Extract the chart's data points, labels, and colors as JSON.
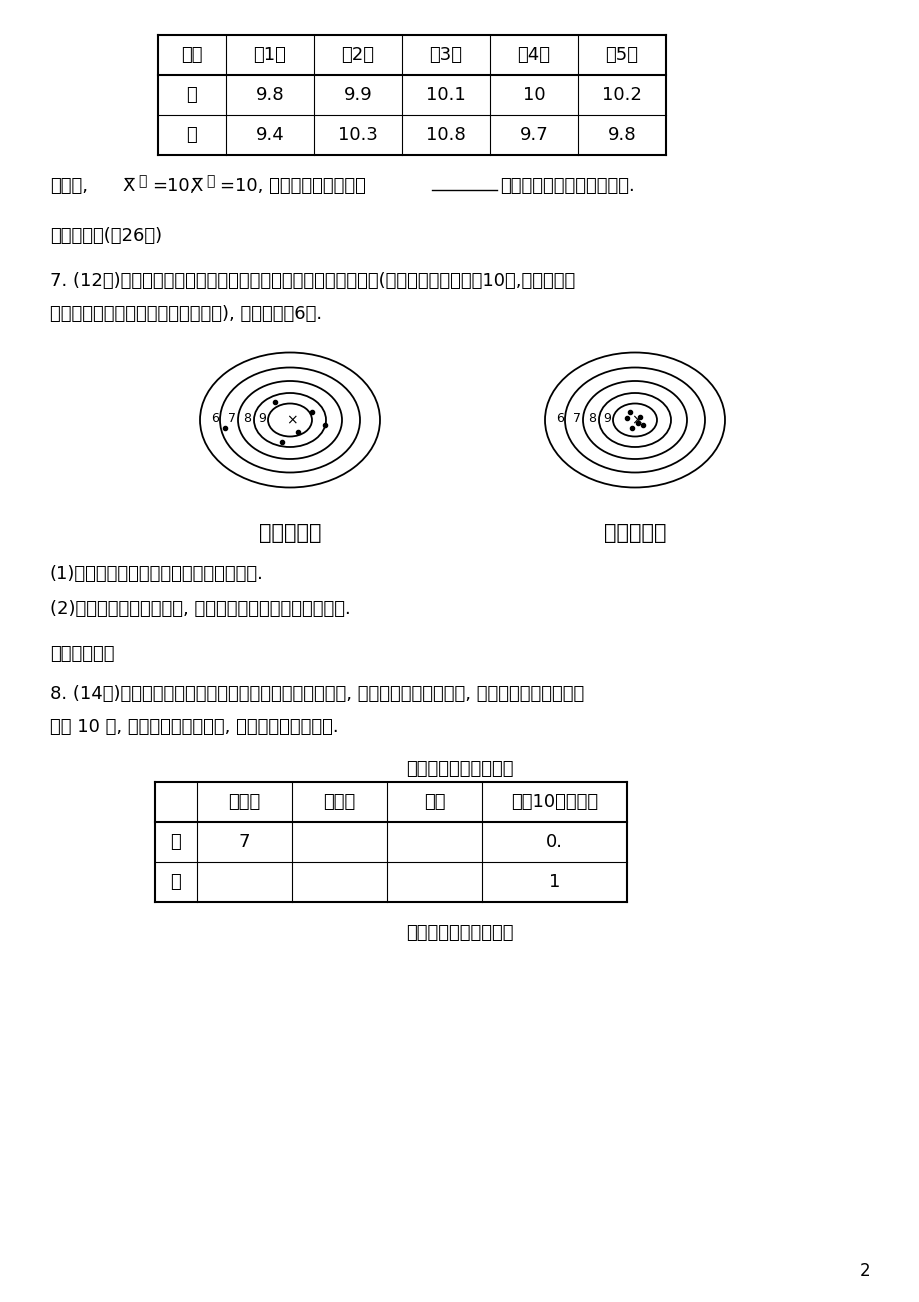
{
  "bg_color": "#ffffff",
  "page_num": "2",
  "table1": {
    "headers": [
      "品种",
      "第1年",
      "第2年",
      "第3年",
      "第4年",
      "第5年"
    ],
    "rows": [
      [
        "甲",
        "9.8",
        "9.9",
        "10.1",
        "10",
        "10.2"
      ],
      [
        "乙",
        "9.4",
        "10.3",
        "10.8",
        "9.7",
        "9.8"
      ]
    ]
  },
  "section3_title": "三、解答题(內26分)",
  "q7_text1": "7. (12分)如图所示是甲、乙两人在一次射击比赛中击中靶的情况(击中靶中心的圆面为10环,靶中各数字",
  "q7_text2": "表示该数所在圆环被击中所得的环数), 每人射击了6次.",
  "target_label_jia": "甲射击的靶",
  "target_label_yi": "乙射击的靶",
  "q7_sub1": "(1)请用列表法将他俩的射击成绩统计出来.",
  "q7_sub2": "(2)请你用学过的统计知识, 对他俩的这次射击情况进行比较.",
  "extension_title": "【拓展延伸】",
  "q8_text1": "8. (14分)为了从甲、乙两名选手中选拔一个参加射击比赛, 现对他们进行一次测验, 两个人在相同条件下各",
  "q8_text2": "射靶 10 次, 为了比较两人的成绩, 制作了如下统计图表.",
  "table2_title": "甲、乙射击成绩统计表",
  "table2": {
    "headers": [
      "",
      "平均数",
      "中位数",
      "方差",
      "命中10环的次数"
    ],
    "rows": [
      [
        "甲",
        "7",
        "",
        "",
        "0."
      ],
      [
        "乙",
        "",
        "",
        "",
        "1"
      ]
    ]
  },
  "chart_title": "甲、乙射击成绩折线图"
}
